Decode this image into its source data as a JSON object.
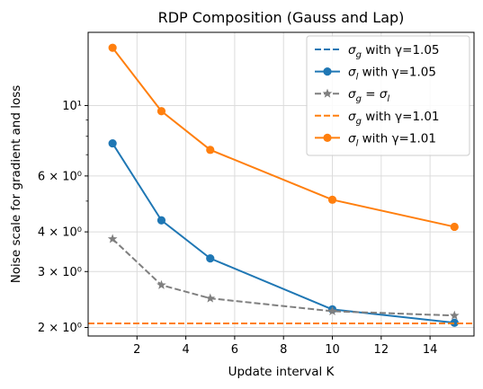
{
  "chart_data": {
    "type": "line",
    "title": "RDP Composition (Gauss and Lap)",
    "xlabel": "Update interval K",
    "ylabel": "Noise scale for gradient and loss",
    "xlim": [
      0.0,
      15.8
    ],
    "ylim": [
      1.88,
      17.0
    ],
    "yscale": "log",
    "grid": true,
    "legend_position": "top-right",
    "x_ticks": [
      2,
      4,
      6,
      8,
      10,
      12,
      14
    ],
    "y_ticks": [
      {
        "value": 2,
        "label": "2 × 10⁰"
      },
      {
        "value": 3,
        "label": "3 × 10⁰"
      },
      {
        "value": 4,
        "label": "4 × 10⁰"
      },
      {
        "value": 6,
        "label": "6 × 10⁰"
      },
      {
        "value": 10,
        "label": "10¹"
      }
    ],
    "y_minor_ticks": [
      5,
      7,
      8,
      9
    ],
    "series": [
      {
        "name": "σg with γ=1.05",
        "kind": "hline",
        "y": 2.06,
        "color": "#1f77b4",
        "dashed": true,
        "marker": "none"
      },
      {
        "name": "σl with γ=1.05",
        "kind": "line",
        "x": [
          1,
          3,
          5,
          10,
          15
        ],
        "y": [
          7.6,
          4.35,
          3.3,
          2.28,
          2.07
        ],
        "color": "#1f77b4",
        "dashed": false,
        "marker": "circle"
      },
      {
        "name": "σg = σl",
        "kind": "line",
        "x": [
          1,
          3,
          5,
          10,
          15
        ],
        "y": [
          3.8,
          2.72,
          2.47,
          2.25,
          2.18
        ],
        "color": "#7f7f7f",
        "dashed": true,
        "marker": "star"
      },
      {
        "name": "σg with γ=1.01",
        "kind": "hline",
        "y": 2.06,
        "color": "#ff7f0e",
        "dashed": true,
        "marker": "none"
      },
      {
        "name": "σl with γ=1.01",
        "kind": "line",
        "x": [
          1,
          3,
          5,
          10,
          15
        ],
        "y": [
          15.2,
          9.6,
          7.25,
          5.05,
          4.15
        ],
        "color": "#ff7f0e",
        "dashed": false,
        "marker": "circle"
      }
    ]
  }
}
